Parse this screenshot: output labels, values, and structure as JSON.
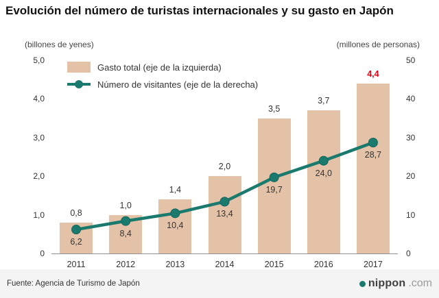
{
  "header": {
    "title": "Evolución del número de turistas internacionales y su gasto en Japón"
  },
  "axes": {
    "left_unit": "(billones de yenes)",
    "right_unit": "(millones de personas)"
  },
  "legend": {
    "gasto_label": "Gasto total (eje de la izquierda)",
    "visitantes_label": "Número de visitantes (eje de la derecha)"
  },
  "footer": {
    "source": "Fuente: Agencia de Turismo de Japón",
    "logo_name": "nippon",
    "logo_tld": ".com"
  },
  "colors": {
    "bar": "#e3c2a8",
    "line": "#1b7a6e",
    "highlight": "#e60012",
    "axis": "#8f8f8f",
    "logo_dot": "#1b7a6e"
  },
  "chart_data": {
    "type": "bar+line",
    "title": "Evolución del número de turistas internacionales y su gasto en Japón",
    "categories": [
      "2011",
      "2012",
      "2013",
      "2014",
      "2015",
      "2016",
      "2017"
    ],
    "series": [
      {
        "name": "Gasto total (eje de la izquierda)",
        "type": "bar",
        "axis": "left",
        "unit": "billones de yenes",
        "values": [
          0.8,
          1.0,
          1.4,
          2.0,
          3.5,
          3.7,
          4.4
        ],
        "labels": [
          "0,8",
          "1,0",
          "1,4",
          "2,0",
          "3,5",
          "3,7",
          "4,4"
        ],
        "highlight_index": 6
      },
      {
        "name": "Número de visitantes (eje de la derecha)",
        "type": "line",
        "axis": "right",
        "unit": "millones de personas",
        "values": [
          6.2,
          8.4,
          10.4,
          13.4,
          19.7,
          24.0,
          28.7
        ],
        "labels": [
          "6,2",
          "8,4",
          "10,4",
          "13,4",
          "19,7",
          "24,0",
          "28,7"
        ]
      }
    ],
    "left_axis": {
      "min": 0,
      "max": 5,
      "tick_labels": [
        "0",
        "1,0",
        "2,0",
        "3,0",
        "4,0",
        "5,0"
      ]
    },
    "right_axis": {
      "min": 0,
      "max": 50,
      "tick_labels": [
        "0",
        "10",
        "20",
        "30",
        "40",
        "50"
      ]
    },
    "legend_position": "top-left",
    "grid": false
  }
}
